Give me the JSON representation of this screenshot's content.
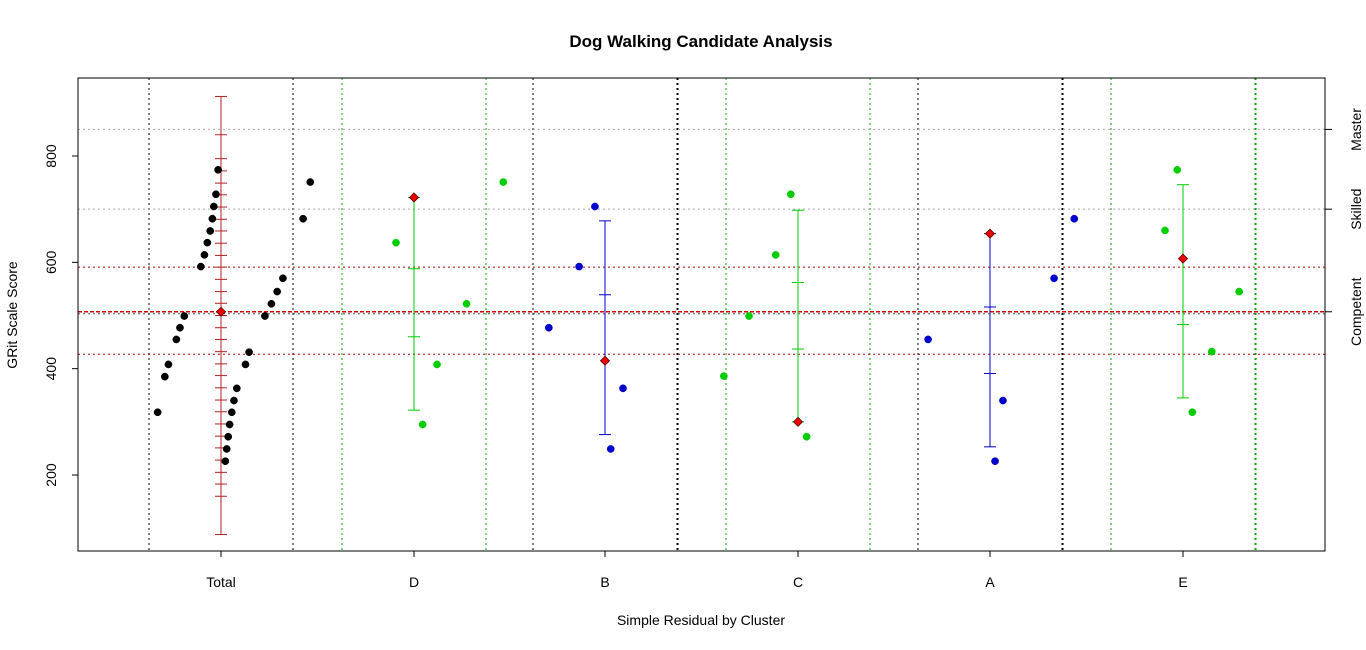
{
  "chart_data": {
    "type": "scatter",
    "title": "Dog Walking Candidate Analysis",
    "xlabel": "Simple Residual by Cluster",
    "ylabel": "GRit Scale Score",
    "ylim": [
      50,
      940
    ],
    "y_ticks": [
      200,
      400,
      600,
      800
    ],
    "grid": true,
    "colors": {
      "total": "#000000",
      "green": "#00cc00",
      "blue": "#0000cc",
      "red": "#ee0000",
      "dark_red": "#b22222",
      "grid_black": "#000000",
      "grid_green": "#00aa00",
      "hline_grey": "#aaaaaa",
      "hline_red": "#aa0000",
      "mean_line": "#cc0000"
    },
    "reference_lines": {
      "mean": 507,
      "red_dotted": [
        427,
        591
      ],
      "grey_dotted": [
        700,
        850
      ]
    },
    "right_axis_labels": [
      {
        "label": "Competent",
        "value": 507
      },
      {
        "label": "Skilled",
        "value": 700
      },
      {
        "label": "Master",
        "value": 850
      }
    ],
    "clusters": [
      {
        "name": "Total",
        "color": "total",
        "points": [
          {
            "dx": -0.88,
            "y": 318
          },
          {
            "dx": -0.78,
            "y": 385
          },
          {
            "dx": -0.73,
            "y": 408
          },
          {
            "dx": -0.62,
            "y": 455
          },
          {
            "dx": -0.57,
            "y": 477
          },
          {
            "dx": -0.51,
            "y": 499
          },
          {
            "dx": -0.28,
            "y": 592
          },
          {
            "dx": -0.23,
            "y": 614
          },
          {
            "dx": -0.19,
            "y": 637
          },
          {
            "dx": -0.15,
            "y": 659
          },
          {
            "dx": -0.12,
            "y": 682
          },
          {
            "dx": -0.1,
            "y": 705
          },
          {
            "dx": -0.07,
            "y": 728
          },
          {
            "dx": -0.04,
            "y": 774
          },
          {
            "dx": 0.06,
            "y": 226
          },
          {
            "dx": 0.08,
            "y": 249
          },
          {
            "dx": 0.1,
            "y": 272
          },
          {
            "dx": 0.12,
            "y": 295
          },
          {
            "dx": 0.15,
            "y": 318
          },
          {
            "dx": 0.18,
            "y": 340
          },
          {
            "dx": 0.22,
            "y": 363
          },
          {
            "dx": 0.34,
            "y": 408
          },
          {
            "dx": 0.39,
            "y": 431
          },
          {
            "dx": 0.61,
            "y": 499
          },
          {
            "dx": 0.7,
            "y": 522
          },
          {
            "dx": 0.78,
            "y": 545
          },
          {
            "dx": 0.86,
            "y": 570
          },
          {
            "dx": 1.14,
            "y": 682
          },
          {
            "dx": 1.24,
            "y": 751
          }
        ],
        "center": 507,
        "range": [
          88,
          912
        ],
        "ticks": [
          160,
          183,
          205,
          228,
          251,
          273,
          296,
          319,
          341,
          364,
          387,
          409,
          432,
          455,
          477,
          500,
          523,
          545,
          568,
          591,
          613,
          636,
          659,
          681,
          704,
          727,
          749,
          772,
          795,
          840
        ]
      },
      {
        "name": "D",
        "color": "green",
        "points": [
          {
            "dx": -0.25,
            "y": 637
          },
          {
            "dx": 0.32,
            "y": 408
          },
          {
            "dx": 0.12,
            "y": 295
          },
          {
            "dx": 0.73,
            "y": 522
          },
          {
            "dx": 1.24,
            "y": 751
          }
        ],
        "center": 722,
        "range": [
          322,
          722
        ],
        "ticks": [
          460,
          588
        ]
      },
      {
        "name": "B",
        "color": "blue",
        "points": [
          {
            "dx": -0.78,
            "y": 477
          },
          {
            "dx": -0.36,
            "y": 592
          },
          {
            "dx": -0.14,
            "y": 705
          },
          {
            "dx": 0.08,
            "y": 249
          },
          {
            "dx": 0.25,
            "y": 363
          }
        ],
        "center": 415,
        "range": [
          276,
          678
        ],
        "ticks": [
          539
        ]
      },
      {
        "name": "C",
        "color": "green",
        "points": [
          {
            "dx": -1.03,
            "y": 386
          },
          {
            "dx": -0.68,
            "y": 499
          },
          {
            "dx": -0.31,
            "y": 614
          },
          {
            "dx": -0.1,
            "y": 728
          },
          {
            "dx": 0.12,
            "y": 272
          }
        ],
        "center": 300,
        "range": [
          300,
          698
        ],
        "ticks": [
          437,
          562
        ]
      },
      {
        "name": "A",
        "color": "blue",
        "points": [
          {
            "dx": -0.86,
            "y": 455
          },
          {
            "dx": 0.07,
            "y": 226
          },
          {
            "dx": 0.18,
            "y": 340
          },
          {
            "dx": 0.89,
            "y": 570
          },
          {
            "dx": 1.17,
            "y": 682
          }
        ],
        "center": 654,
        "range": [
          253,
          654
        ],
        "ticks": [
          391,
          516
        ]
      },
      {
        "name": "E",
        "color": "green",
        "points": [
          {
            "dx": -0.25,
            "y": 660
          },
          {
            "dx": -0.08,
            "y": 774
          },
          {
            "dx": 0.13,
            "y": 318
          },
          {
            "dx": 0.4,
            "y": 432
          },
          {
            "dx": 0.78,
            "y": 545
          }
        ],
        "center": 607,
        "range": [
          345,
          746
        ],
        "ticks": [
          483
        ]
      }
    ]
  }
}
